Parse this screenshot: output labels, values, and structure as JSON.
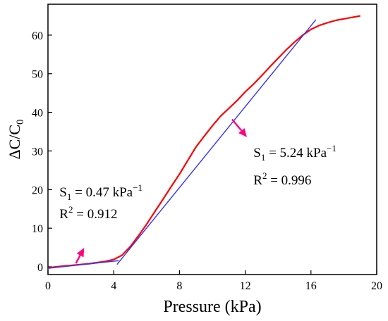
{
  "chart_data": {
    "type": "line",
    "xlabel": "Pressure (kPa)",
    "ylabel_main": "ΔC/C",
    "ylabel_sub": "0",
    "xlim": [
      0,
      20
    ],
    "ylim": [
      -2,
      68
    ],
    "x_ticks": [
      0,
      4,
      8,
      12,
      16,
      20
    ],
    "y_ticks": [
      0,
      10,
      20,
      30,
      40,
      50,
      60
    ],
    "grid": false,
    "series": [
      {
        "color": "#ff0000",
        "x": [
          0,
          0.5,
          1,
          1.5,
          2,
          2.5,
          3,
          3.5,
          4,
          4.5,
          5,
          5.5,
          6,
          6.5,
          7,
          7.5,
          8,
          8.5,
          9,
          9.5,
          10,
          10.5,
          11,
          11.5,
          12,
          12.5,
          13,
          13.5,
          14,
          14.5,
          15,
          15.5,
          16,
          16.5,
          17,
          17.5,
          18,
          18.5,
          19
        ],
        "y": [
          -0.3,
          0.0,
          0.2,
          0.4,
          0.6,
          0.8,
          1.1,
          1.4,
          1.9,
          3.0,
          5.2,
          8.0,
          11.0,
          14.3,
          17.5,
          20.8,
          24.0,
          27.5,
          31.0,
          33.8,
          36.5,
          39.0,
          41.0,
          43.0,
          45.3,
          47.3,
          49.5,
          51.8,
          54.0,
          56.2,
          58.2,
          60.0,
          61.5,
          62.5,
          63.2,
          63.8,
          64.2,
          64.6,
          65.0
        ]
      }
    ],
    "fits": [
      {
        "color": "#3333ff",
        "x": [
          0,
          4.3
        ],
        "y": [
          -0.4,
          1.6
        ]
      },
      {
        "color": "#3333ff",
        "x": [
          4.2,
          16.3
        ],
        "y": [
          0.6,
          64.0
        ]
      }
    ],
    "annotations": [
      {
        "label": "S",
        "sub": "1",
        "value": " = 0.47 kPa",
        "sup": "−1",
        "x": 0.7,
        "y": 18.2
      },
      {
        "label": "R",
        "sup": "2",
        "value": " = 0.912",
        "x": 0.7,
        "y": 12.6
      },
      {
        "label": "S",
        "sub": "1",
        "value": " = 5.24 kPa",
        "sup": "−1",
        "x": 12.5,
        "y": 28.4
      },
      {
        "label": "R",
        "sup": "2",
        "value": " = 0.996",
        "x": 12.5,
        "y": 21.3
      }
    ],
    "arrows": [
      {
        "color": "#ff0080",
        "from": [
          1.7,
          0.9
        ],
        "to": [
          2.2,
          4.9
        ]
      },
      {
        "color": "#ff0080",
        "from": [
          11.2,
          38.2
        ],
        "to": [
          12.1,
          33.6
        ]
      }
    ]
  }
}
